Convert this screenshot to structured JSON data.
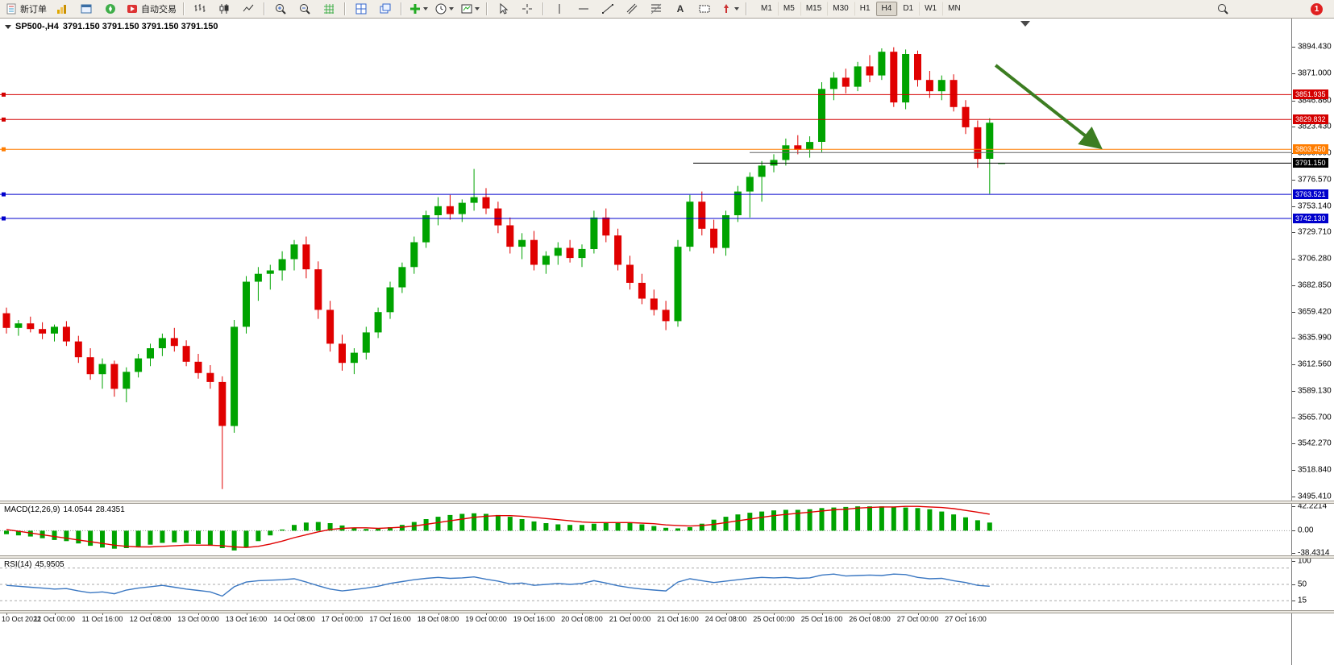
{
  "toolbar": {
    "new_order_label": "新订单",
    "auto_trading_label": "自动交易",
    "text_tool_label": "A",
    "timeframes": [
      "M1",
      "M5",
      "M15",
      "M30",
      "H1",
      "H4",
      "D1",
      "W1",
      "MN"
    ],
    "active_timeframe": "H4",
    "notification_count": "1"
  },
  "chart": {
    "symbol_period": "SP500-,H4",
    "ohlc": "3791.150 3791.150 3791.150 3791.150"
  },
  "chart_data": {
    "type": "candlestick",
    "symbol": "SP500-",
    "timeframe": "H4",
    "colors": {
      "bull": "#00a300",
      "bear": "#e00000",
      "red_line": "#d40000",
      "orange_line": "#ff7d00",
      "blue_line": "#0000cc",
      "price_line": "#000000",
      "partial_line": "#666666",
      "arrow": "#3c7d21",
      "macd_hist": "#00a300",
      "macd_signal": "#e00000",
      "rsi_line": "#3a77c2"
    },
    "y_ticks": [
      "3894.430",
      "3871.000",
      "3846.860",
      "3823.430",
      "3800.000",
      "3776.570",
      "3753.140",
      "3729.710",
      "3706.280",
      "3682.850",
      "3659.420",
      "3635.990",
      "3612.560",
      "3589.130",
      "3565.700",
      "3542.270",
      "3518.840",
      "3495.410"
    ],
    "x_labels": [
      "10 Oct 2022",
      "11 Oct 00:00",
      "11 Oct 16:00",
      "12 Oct 08:00",
      "13 Oct 00:00",
      "13 Oct 16:00",
      "14 Oct 08:00",
      "17 Oct 00:00",
      "17 Oct 16:00",
      "18 Oct 08:00",
      "19 Oct 00:00",
      "19 Oct 16:00",
      "20 Oct 08:00",
      "21 Oct 00:00",
      "21 Oct 16:00",
      "24 Oct 08:00",
      "25 Oct 00:00",
      "25 Oct 16:00",
      "26 Oct 08:00",
      "27 Oct 00:00",
      "27 Oct 16:00"
    ],
    "candles_per_label": 4,
    "candles": [
      [
        3658,
        3663,
        3640,
        3645
      ],
      [
        3645,
        3652,
        3638,
        3649
      ],
      [
        3649,
        3655,
        3641,
        3644
      ],
      [
        3644,
        3650,
        3635,
        3640
      ],
      [
        3640,
        3648,
        3633,
        3646
      ],
      [
        3646,
        3651,
        3629,
        3633
      ],
      [
        3633,
        3638,
        3614,
        3619
      ],
      [
        3619,
        3627,
        3599,
        3604
      ],
      [
        3604,
        3618,
        3591,
        3613
      ],
      [
        3613,
        3616,
        3584,
        3591
      ],
      [
        3591,
        3610,
        3579,
        3606
      ],
      [
        3606,
        3622,
        3601,
        3618
      ],
      [
        3618,
        3631,
        3611,
        3627
      ],
      [
        3627,
        3640,
        3620,
        3636
      ],
      [
        3636,
        3645,
        3624,
        3629
      ],
      [
        3629,
        3634,
        3611,
        3615
      ],
      [
        3615,
        3622,
        3600,
        3605
      ],
      [
        3605,
        3612,
        3591,
        3597
      ],
      [
        3597,
        3602,
        3502,
        3558
      ],
      [
        3558,
        3652,
        3552,
        3646
      ],
      [
        3646,
        3691,
        3640,
        3686
      ],
      [
        3686,
        3699,
        3669,
        3693
      ],
      [
        3693,
        3701,
        3679,
        3696
      ],
      [
        3696,
        3713,
        3687,
        3706
      ],
      [
        3706,
        3723,
        3696,
        3719
      ],
      [
        3719,
        3726,
        3689,
        3697
      ],
      [
        3697,
        3704,
        3653,
        3661
      ],
      [
        3661,
        3669,
        3624,
        3631
      ],
      [
        3631,
        3639,
        3607,
        3614
      ],
      [
        3614,
        3627,
        3604,
        3623
      ],
      [
        3623,
        3646,
        3617,
        3641
      ],
      [
        3641,
        3663,
        3636,
        3659
      ],
      [
        3659,
        3686,
        3653,
        3681
      ],
      [
        3681,
        3703,
        3676,
        3699
      ],
      [
        3699,
        3726,
        3693,
        3721
      ],
      [
        3721,
        3749,
        3716,
        3745
      ],
      [
        3745,
        3761,
        3736,
        3753
      ],
      [
        3753,
        3763,
        3741,
        3746
      ],
      [
        3746,
        3759,
        3739,
        3756
      ],
      [
        3756,
        3786,
        3749,
        3761
      ],
      [
        3761,
        3769,
        3746,
        3751
      ],
      [
        3751,
        3757,
        3729,
        3736
      ],
      [
        3736,
        3743,
        3711,
        3717
      ],
      [
        3717,
        3729,
        3706,
        3723
      ],
      [
        3723,
        3731,
        3696,
        3701
      ],
      [
        3701,
        3713,
        3693,
        3709
      ],
      [
        3709,
        3721,
        3701,
        3716
      ],
      [
        3716,
        3723,
        3703,
        3707
      ],
      [
        3707,
        3719,
        3699,
        3715
      ],
      [
        3715,
        3749,
        3711,
        3743
      ],
      [
        3743,
        3751,
        3721,
        3727
      ],
      [
        3727,
        3733,
        3696,
        3701
      ],
      [
        3701,
        3709,
        3679,
        3685
      ],
      [
        3685,
        3693,
        3666,
        3671
      ],
      [
        3671,
        3679,
        3656,
        3661
      ],
      [
        3661,
        3669,
        3643,
        3651
      ],
      [
        3651,
        3723,
        3646,
        3717
      ],
      [
        3717,
        3763,
        3713,
        3757
      ],
      [
        3757,
        3766,
        3727,
        3733
      ],
      [
        3733,
        3741,
        3711,
        3716
      ],
      [
        3716,
        3749,
        3709,
        3745
      ],
      [
        3745,
        3771,
        3739,
        3766
      ],
      [
        3766,
        3783,
        3743,
        3779
      ],
      [
        3779,
        3793,
        3757,
        3789
      ],
      [
        3789,
        3799,
        3783,
        3794
      ],
      [
        3794,
        3813,
        3789,
        3807
      ],
      [
        3807,
        3816,
        3799,
        3803
      ],
      [
        3803,
        3815,
        3796,
        3810
      ],
      [
        3810,
        3863,
        3801,
        3857
      ],
      [
        3857,
        3872,
        3847,
        3867
      ],
      [
        3867,
        3875,
        3853,
        3859
      ],
      [
        3859,
        3881,
        3855,
        3877
      ],
      [
        3877,
        3887,
        3863,
        3869
      ],
      [
        3869,
        3893,
        3865,
        3890
      ],
      [
        3890,
        3894,
        3841,
        3845
      ],
      [
        3845,
        3892,
        3839,
        3888
      ],
      [
        3888,
        3891,
        3859,
        3865
      ],
      [
        3865,
        3873,
        3849,
        3855
      ],
      [
        3855,
        3869,
        3847,
        3865
      ],
      [
        3865,
        3870,
        3837,
        3841
      ],
      [
        3841,
        3847,
        3817,
        3823
      ],
      [
        3823,
        3829,
        3787,
        3795
      ],
      [
        3795,
        3831,
        3764,
        3827
      ],
      [
        3791.15,
        3791.15,
        3791.15,
        3791.15
      ]
    ],
    "price_lines": [
      {
        "price": 3851.935,
        "label": "3851.935",
        "color": "#d40000"
      },
      {
        "price": 3829.832,
        "label": "3829.832",
        "color": "#d40000"
      },
      {
        "price": 3803.45,
        "label": "3803.450",
        "color": "#ff7d00"
      },
      {
        "price": 3763.521,
        "label": "3763.521",
        "color": "#0000cc"
      },
      {
        "price": 3742.13,
        "label": "3742.130",
        "color": "#0000cc"
      }
    ],
    "current_price": {
      "price": 3791.15,
      "label": "3791.150"
    },
    "partial_line": {
      "price": 3800.6,
      "start_x": 930
    },
    "arrow": {
      "from_index": 82.5,
      "from_price": 3878,
      "to_index": 91,
      "to_price": 3807
    },
    "macd": {
      "label": "MACD(12,26,9)",
      "main_value": "14.0544",
      "signal_value": "28.4351",
      "axis_ticks": [
        "42.2214",
        "0.00",
        "-38.4314"
      ],
      "max": 42.2214,
      "min": -38.4314,
      "histogram": [
        -6,
        -8,
        -10,
        -13,
        -16,
        -18,
        -22,
        -26,
        -29,
        -31,
        -30,
        -27,
        -24,
        -21,
        -20,
        -21,
        -23,
        -26,
        -30,
        -34,
        -28,
        -18,
        -8,
        2,
        10,
        14,
        15,
        13,
        9,
        5,
        3,
        4,
        6,
        10,
        15,
        20,
        24,
        27,
        29,
        30,
        29,
        27,
        24,
        20,
        16,
        13,
        11,
        10,
        10,
        12,
        13,
        14,
        13,
        11,
        8,
        5,
        4,
        6,
        12,
        19,
        24,
        28,
        31,
        33,
        35,
        36,
        36,
        37,
        39,
        40,
        41,
        42,
        42,
        42,
        41,
        40,
        39,
        37,
        33,
        28,
        23,
        18,
        14
      ],
      "signal": [
        2,
        -1,
        -4,
        -7,
        -10,
        -13,
        -16,
        -19,
        -22,
        -25,
        -27,
        -28,
        -28,
        -27,
        -26,
        -25,
        -25,
        -25,
        -26,
        -28,
        -29,
        -27,
        -23,
        -18,
        -12,
        -7,
        -2,
        2,
        4,
        5,
        5,
        4,
        5,
        6,
        8,
        11,
        14,
        17,
        20,
        23,
        25,
        26,
        26,
        25,
        23,
        21,
        19,
        17,
        15,
        14,
        14,
        14,
        14,
        13,
        12,
        10,
        9,
        8,
        9,
        11,
        14,
        17,
        20,
        23,
        26,
        28,
        30,
        32,
        34,
        36,
        37,
        39,
        40,
        41,
        41,
        42,
        42,
        41,
        40,
        38,
        35,
        32,
        28.4
      ]
    },
    "rsi": {
      "label": "RSI(14)",
      "value": "45.9505",
      "axis_ticks": [
        "100",
        "50",
        "15"
      ],
      "levels": [
        85,
        50,
        15
      ],
      "values": [
        48,
        46,
        44,
        42,
        40,
        41,
        36,
        32,
        34,
        30,
        38,
        42,
        45,
        48,
        44,
        40,
        37,
        34,
        25,
        45,
        55,
        58,
        59,
        60,
        62,
        55,
        47,
        40,
        36,
        39,
        42,
        46,
        52,
        56,
        60,
        63,
        65,
        63,
        64,
        66,
        61,
        57,
        51,
        53,
        48,
        50,
        52,
        50,
        52,
        58,
        53,
        47,
        43,
        40,
        38,
        36,
        55,
        62,
        58,
        54,
        57,
        60,
        63,
        65,
        64,
        65,
        63,
        64,
        70,
        72,
        68,
        69,
        70,
        69,
        72,
        71,
        65,
        62,
        63,
        58,
        54,
        48,
        46
      ]
    }
  }
}
